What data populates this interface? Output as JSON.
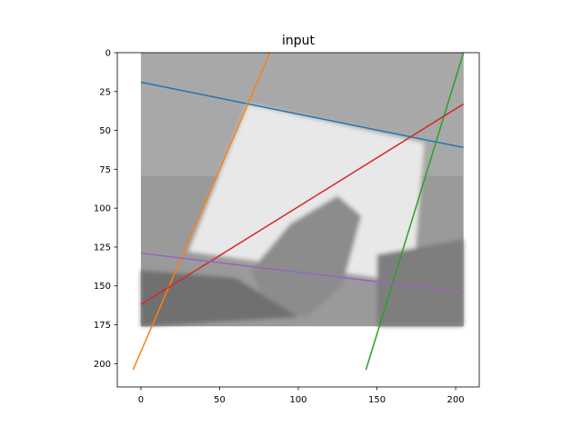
{
  "chart_data": {
    "type": "line",
    "title": "input",
    "xlabel": "",
    "ylabel": "",
    "xlim": [
      -15,
      215
    ],
    "ylim": [
      215,
      0
    ],
    "y_inverted": true,
    "grid": false,
    "legend": "none",
    "x_ticks": [
      0,
      50,
      100,
      150,
      200
    ],
    "y_ticks": [
      0,
      25,
      50,
      75,
      100,
      125,
      150,
      175,
      200
    ],
    "background_image": {
      "description_level": "grayscale photo",
      "extent_x": [
        0,
        205
      ],
      "extent_y": [
        0,
        176
      ],
      "base_color": "#9a9a9a",
      "paper_color": "#e8e8e8",
      "dark_color": "#707070"
    },
    "series": [
      {
        "color": "#1f77b4",
        "x": [
          0,
          205
        ],
        "y": [
          19,
          61
        ]
      },
      {
        "color": "#ff7f0e",
        "x": [
          -5,
          82
        ],
        "y": [
          204,
          0
        ]
      },
      {
        "color": "#2ca02c",
        "x": [
          143,
          205
        ],
        "y": [
          204,
          0
        ]
      },
      {
        "color": "#d62728",
        "x": [
          0,
          205
        ],
        "y": [
          162,
          33
        ]
      },
      {
        "color": "#9467bd",
        "x": [
          0,
          205
        ],
        "y": [
          129,
          154
        ]
      }
    ]
  }
}
